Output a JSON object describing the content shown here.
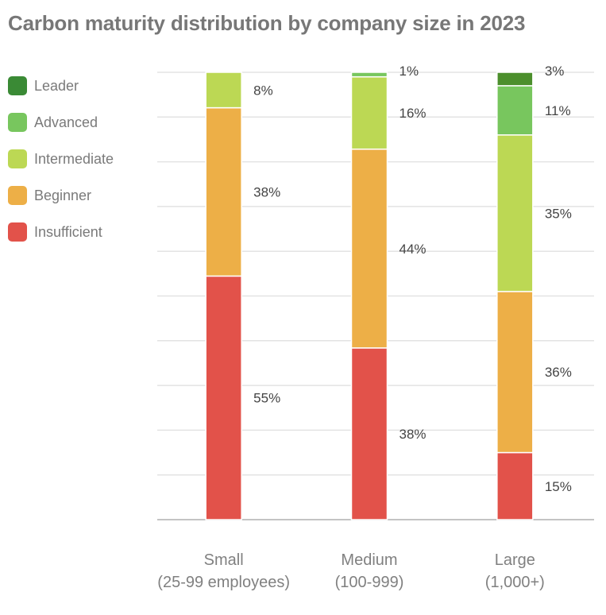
{
  "chart_data": {
    "type": "bar",
    "stacked": true,
    "title": "Carbon maturity distribution by company size in 2023",
    "xlabel": "",
    "ylabel": "",
    "ylim": [
      0,
      100
    ],
    "grid": true,
    "legend_position": "left",
    "categories": [
      [
        "Small",
        "(25-99 employees)"
      ],
      [
        "Medium",
        "(100-999)"
      ],
      [
        "Large",
        "(1,000+)"
      ]
    ],
    "series": [
      {
        "name": "Insufficient",
        "color": "#e2524a",
        "values": [
          55,
          38,
          15
        ]
      },
      {
        "name": "Beginner",
        "color": "#edaf47",
        "values": [
          38,
          44,
          36
        ]
      },
      {
        "name": "Intermediate",
        "color": "#bcd854",
        "values": [
          8,
          16,
          35
        ]
      },
      {
        "name": "Advanced",
        "color": "#78c65e",
        "values": [
          0,
          1,
          11
        ]
      },
      {
        "name": "Leader",
        "color": "#4c8f2c",
        "values": [
          0,
          0,
          3
        ]
      }
    ],
    "legend": [
      {
        "name": "Leader",
        "color": "#3a8a35"
      },
      {
        "name": "Advanced",
        "color": "#78c65e"
      },
      {
        "name": "Intermediate",
        "color": "#bcd854"
      },
      {
        "name": "Beginner",
        "color": "#edaf47"
      },
      {
        "name": "Insufficient",
        "color": "#e2524a"
      }
    ]
  }
}
